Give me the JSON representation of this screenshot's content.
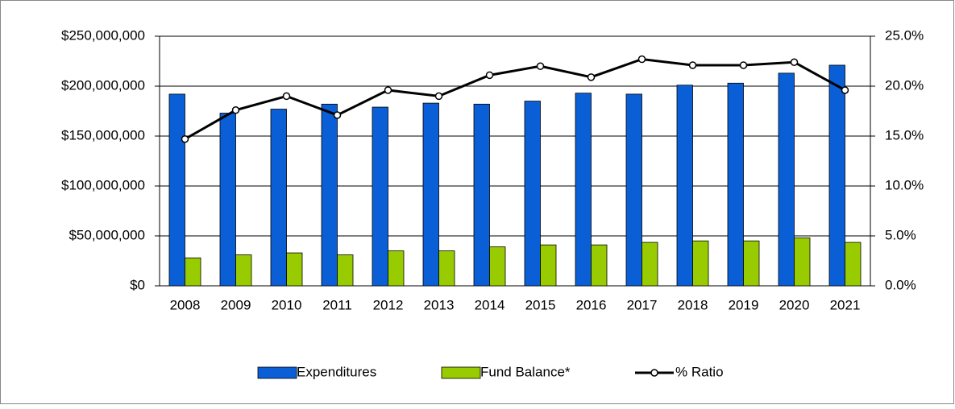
{
  "chart_data": {
    "type": "bar",
    "categories": [
      "2008",
      "2009",
      "2010",
      "2011",
      "2012",
      "2013",
      "2014",
      "2015",
      "2016",
      "2017",
      "2018",
      "2019",
      "2020",
      "2021"
    ],
    "series": [
      {
        "name": "Expenditures",
        "color": "#0b5fd6",
        "values": [
          192000000,
          173000000,
          177000000,
          182000000,
          179000000,
          183000000,
          182000000,
          185000000,
          193000000,
          192000000,
          201000000,
          203000000,
          213000000,
          221000000
        ]
      },
      {
        "name": "Fund Balance*",
        "color": "#99cc00",
        "values": [
          28000000,
          31000000,
          33000000,
          31000000,
          35000000,
          35000000,
          39000000,
          41000000,
          41000000,
          43500000,
          45000000,
          45000000,
          48000000,
          43500000
        ]
      },
      {
        "name": "% Ratio",
        "color": "#000000",
        "type": "line",
        "axis": "y2",
        "values": [
          14.7,
          17.6,
          19.0,
          17.1,
          19.6,
          19.0,
          21.1,
          22.0,
          20.9,
          22.7,
          22.1,
          22.1,
          22.4,
          19.6
        ]
      }
    ],
    "ylim": [
      0,
      250000000
    ],
    "yticks": [
      {
        "value": 0,
        "label": "$0"
      },
      {
        "value": 50000000,
        "label": "$50,000,000"
      },
      {
        "value": 100000000,
        "label": "$100,000,000"
      },
      {
        "value": 150000000,
        "label": "$150,000,000"
      },
      {
        "value": 200000000,
        "label": "$200,000,000"
      },
      {
        "value": 250000000,
        "label": "$250,000,000"
      }
    ],
    "y2lim": [
      0,
      25
    ],
    "y2ticks": [
      {
        "value": 0,
        "label": "0.0%"
      },
      {
        "value": 5,
        "label": "5.0%"
      },
      {
        "value": 10,
        "label": "10.0%"
      },
      {
        "value": 15,
        "label": "15.0%"
      },
      {
        "value": 20,
        "label": "20.0%"
      },
      {
        "value": 25,
        "label": "25.0%"
      }
    ],
    "grid": true,
    "legend": "bottom"
  }
}
